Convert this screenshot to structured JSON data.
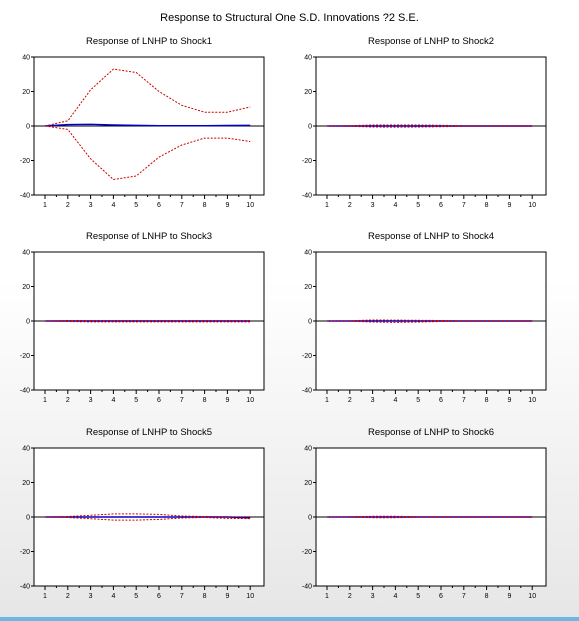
{
  "figure": {
    "title": "Response to Structural One S.D. Innovations ?2 S.E."
  },
  "colors": {
    "response": "#0000cc",
    "bands": "#cc0000",
    "zero_line": "#000000",
    "axis": "#000000"
  },
  "chart_data": [
    {
      "type": "line",
      "title": "Response of LNHP to Shock1",
      "x": [
        1,
        2,
        3,
        4,
        5,
        6,
        7,
        8,
        9,
        10
      ],
      "ylim": [
        -40,
        40
      ],
      "yticks": [
        -40,
        -20,
        0,
        20,
        40
      ],
      "xticks": [
        1,
        2,
        3,
        4,
        5,
        6,
        7,
        8,
        9,
        10
      ],
      "series": [
        {
          "role": "response",
          "values": [
            0,
            0.8,
            1.0,
            0.6,
            0.4,
            0.2,
            0.2,
            0.2,
            0.3,
            0.4
          ]
        },
        {
          "role": "upper",
          "values": [
            0,
            3,
            21,
            33,
            31,
            20,
            12,
            8,
            8,
            11
          ]
        },
        {
          "role": "lower",
          "values": [
            0,
            -2,
            -19,
            -31,
            -29,
            -18,
            -11,
            -7,
            -7,
            -9
          ]
        }
      ]
    },
    {
      "type": "line",
      "title": "Response of LNHP to Shock2",
      "x": [
        1,
        2,
        3,
        4,
        5,
        6,
        7,
        8,
        9,
        10
      ],
      "ylim": [
        -40,
        40
      ],
      "yticks": [
        -40,
        -20,
        0,
        20,
        40
      ],
      "xticks": [
        1,
        2,
        3,
        4,
        5,
        6,
        7,
        8,
        9,
        10
      ],
      "series": [
        {
          "role": "response",
          "values": [
            0,
            0,
            0,
            0,
            0,
            0,
            0,
            0,
            0,
            0
          ]
        },
        {
          "role": "upper",
          "values": [
            0,
            0.2,
            0.6,
            0.6,
            0.6,
            0.4,
            0.2,
            0.1,
            0.1,
            0.1
          ]
        },
        {
          "role": "lower",
          "values": [
            0,
            -0.2,
            -0.6,
            -0.7,
            -0.6,
            -0.4,
            -0.2,
            -0.1,
            -0.1,
            -0.1
          ]
        }
      ]
    },
    {
      "type": "line",
      "title": "Response of LNHP to Shock3",
      "x": [
        1,
        2,
        3,
        4,
        5,
        6,
        7,
        8,
        9,
        10
      ],
      "ylim": [
        -40,
        40
      ],
      "yticks": [
        -40,
        -20,
        0,
        20,
        40
      ],
      "xticks": [
        1,
        2,
        3,
        4,
        5,
        6,
        7,
        8,
        9,
        10
      ],
      "series": [
        {
          "role": "response",
          "values": [
            0,
            0,
            0,
            0,
            0,
            0,
            0,
            0,
            0,
            0
          ]
        },
        {
          "role": "upper",
          "values": [
            0,
            0.3,
            0.3,
            0.3,
            0.3,
            0.3,
            0.3,
            0.3,
            0.3,
            0.3
          ]
        },
        {
          "role": "lower",
          "values": [
            0,
            -0.3,
            -0.5,
            -0.5,
            -0.5,
            -0.5,
            -0.5,
            -0.5,
            -0.5,
            -0.5
          ]
        }
      ]
    },
    {
      "type": "line",
      "title": "Response of LNHP to Shock4",
      "x": [
        1,
        2,
        3,
        4,
        5,
        6,
        7,
        8,
        9,
        10
      ],
      "ylim": [
        -40,
        40
      ],
      "yticks": [
        -40,
        -20,
        0,
        20,
        40
      ],
      "xticks": [
        1,
        2,
        3,
        4,
        5,
        6,
        7,
        8,
        9,
        10
      ],
      "series": [
        {
          "role": "response",
          "values": [
            0,
            0,
            0,
            0,
            0,
            0,
            0,
            0,
            0,
            0
          ]
        },
        {
          "role": "upper",
          "values": [
            0,
            0.1,
            0.6,
            0.5,
            0.4,
            0.3,
            0.1,
            0.1,
            0.1,
            0.1
          ]
        },
        {
          "role": "lower",
          "values": [
            0,
            -0.1,
            -0.6,
            -0.8,
            -0.6,
            -0.3,
            -0.1,
            -0.1,
            -0.1,
            -0.1
          ]
        }
      ]
    },
    {
      "type": "line",
      "title": "Response of LNHP to Shock5",
      "x": [
        1,
        2,
        3,
        4,
        5,
        6,
        7,
        8,
        9,
        10
      ],
      "ylim": [
        -40,
        40
      ],
      "yticks": [
        -40,
        -20,
        0,
        20,
        40
      ],
      "xticks": [
        1,
        2,
        3,
        4,
        5,
        6,
        7,
        8,
        9,
        10
      ],
      "series": [
        {
          "role": "response",
          "values": [
            0,
            0,
            0,
            0,
            0,
            0,
            0,
            0,
            0,
            -0.5
          ]
        },
        {
          "role": "upper",
          "values": [
            0,
            0.3,
            1.0,
            1.8,
            1.8,
            1.5,
            0.6,
            0.3,
            0.2,
            0.2
          ]
        },
        {
          "role": "lower",
          "values": [
            0,
            -0.3,
            -1.0,
            -1.8,
            -1.8,
            -1.4,
            -0.6,
            -0.3,
            -0.8,
            -0.9
          ]
        }
      ]
    },
    {
      "type": "line",
      "title": "Response of LNHP to Shock6",
      "x": [
        1,
        2,
        3,
        4,
        5,
        6,
        7,
        8,
        9,
        10
      ],
      "ylim": [
        -40,
        40
      ],
      "yticks": [
        -40,
        -20,
        0,
        20,
        40
      ],
      "xticks": [
        1,
        2,
        3,
        4,
        5,
        6,
        7,
        8,
        9,
        10
      ],
      "series": [
        {
          "role": "response",
          "values": [
            0,
            0,
            0,
            0,
            0,
            0,
            0,
            0,
            0,
            0
          ]
        },
        {
          "role": "upper",
          "values": [
            0,
            0.1,
            0.4,
            0.4,
            0.2,
            0.1,
            0.1,
            0.1,
            0.1,
            0.1
          ]
        },
        {
          "role": "lower",
          "values": [
            0,
            -0.1,
            -0.4,
            -0.4,
            -0.2,
            -0.1,
            -0.1,
            -0.1,
            -0.1,
            -0.1
          ]
        }
      ]
    }
  ]
}
